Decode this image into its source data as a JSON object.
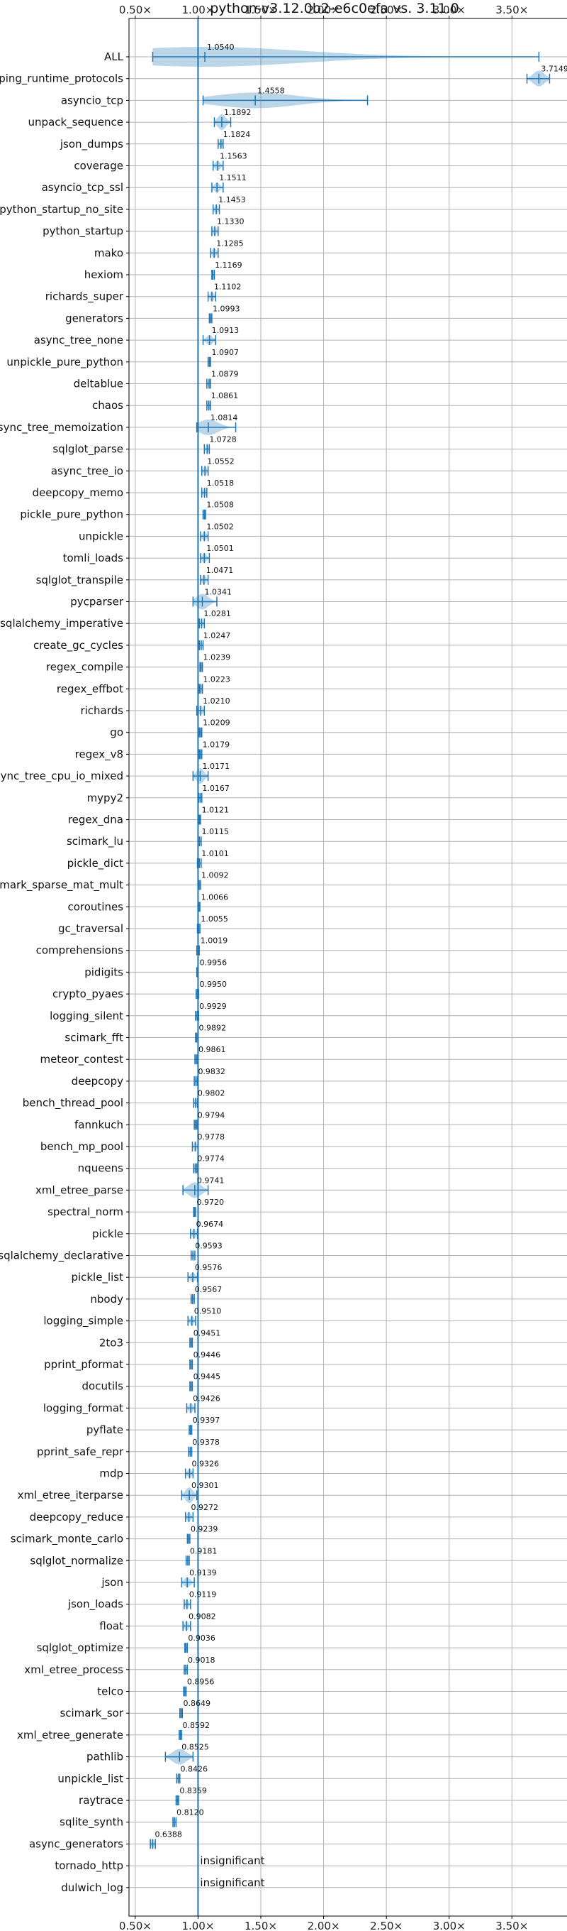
{
  "chart_data": {
    "type": "violin",
    "title": "python-v3.12.0b2-e6c0efa vs. 3.11.0",
    "xlabel": "",
    "ylabel": "",
    "xlim": [
      0.45,
      3.95
    ],
    "xticks": [
      0.5,
      1.0,
      1.5,
      2.0,
      2.5,
      3.0,
      3.5
    ],
    "xtick_labels": [
      "0.50×",
      "1.00×",
      "1.50×",
      "2.00×",
      "2.50×",
      "3.00×",
      "3.50×"
    ],
    "reference_line": 1.0,
    "grid": true,
    "colors": {
      "violin": "#1f77b4",
      "grid": "#b0b0b0"
    },
    "benchmarks": [
      {
        "name": "ALL",
        "label": "1.0540",
        "value": 1.054,
        "min": 0.6388,
        "max": 3.7149,
        "spread": 0.13
      },
      {
        "name": "typing_runtime_protocols",
        "label": "3.7149",
        "value": 3.7149,
        "min": 3.62,
        "max": 3.8,
        "spread": 0.04
      },
      {
        "name": "asyncio_tcp",
        "label": "1.4558",
        "value": 1.4558,
        "min": 1.04,
        "max": 2.35,
        "spread": 0.4
      },
      {
        "name": "unpack_sequence",
        "label": "1.1892",
        "value": 1.1892,
        "min": 1.13,
        "max": 1.26,
        "spread": 0.02
      },
      {
        "name": "json_dumps",
        "label": "1.1824",
        "value": 1.1824,
        "min": 1.16,
        "max": 1.2,
        "spread": 0.01
      },
      {
        "name": "coverage",
        "label": "1.1563",
        "value": 1.1563,
        "min": 1.12,
        "max": 1.2,
        "spread": 0.02
      },
      {
        "name": "asyncio_tcp_ssl",
        "label": "1.1511",
        "value": 1.1511,
        "min": 1.11,
        "max": 1.2,
        "spread": 0.02
      },
      {
        "name": "python_startup_no_site",
        "label": "1.1453",
        "value": 1.1453,
        "min": 1.12,
        "max": 1.17,
        "spread": 0.01
      },
      {
        "name": "python_startup",
        "label": "1.1330",
        "value": 1.133,
        "min": 1.11,
        "max": 1.16,
        "spread": 0.01
      },
      {
        "name": "mako",
        "label": "1.1285",
        "value": 1.1285,
        "min": 1.1,
        "max": 1.16,
        "spread": 0.01
      },
      {
        "name": "hexiom",
        "label": "1.1169",
        "value": 1.1169,
        "min": 1.11,
        "max": 1.13,
        "spread": 0.005
      },
      {
        "name": "richards_super",
        "label": "1.1102",
        "value": 1.1102,
        "min": 1.08,
        "max": 1.14,
        "spread": 0.01
      },
      {
        "name": "generators",
        "label": "1.0993",
        "value": 1.0993,
        "min": 1.09,
        "max": 1.11,
        "spread": 0.005
      },
      {
        "name": "async_tree_none",
        "label": "1.0913",
        "value": 1.0913,
        "min": 1.04,
        "max": 1.14,
        "spread": 0.02
      },
      {
        "name": "unpickle_pure_python",
        "label": "1.0907",
        "value": 1.0907,
        "min": 1.08,
        "max": 1.1,
        "spread": 0.005
      },
      {
        "name": "deltablue",
        "label": "1.0879",
        "value": 1.0879,
        "min": 1.07,
        "max": 1.1,
        "spread": 0.005
      },
      {
        "name": "chaos",
        "label": "1.0861",
        "value": 1.0861,
        "min": 1.07,
        "max": 1.1,
        "spread": 0.005
      },
      {
        "name": "async_tree_memoization",
        "label": "1.0814",
        "value": 1.0814,
        "min": 0.99,
        "max": 1.3,
        "spread": 0.05
      },
      {
        "name": "sqlglot_parse",
        "label": "1.0728",
        "value": 1.0728,
        "min": 1.05,
        "max": 1.09,
        "spread": 0.01
      },
      {
        "name": "async_tree_io",
        "label": "1.0552",
        "value": 1.0552,
        "min": 1.03,
        "max": 1.08,
        "spread": 0.01
      },
      {
        "name": "deepcopy_memo",
        "label": "1.0518",
        "value": 1.0518,
        "min": 1.03,
        "max": 1.07,
        "spread": 0.01
      },
      {
        "name": "pickle_pure_python",
        "label": "1.0508",
        "value": 1.0508,
        "min": 1.04,
        "max": 1.06,
        "spread": 0.005
      },
      {
        "name": "unpickle",
        "label": "1.0502",
        "value": 1.0502,
        "min": 1.02,
        "max": 1.08,
        "spread": 0.01
      },
      {
        "name": "tomli_loads",
        "label": "1.0501",
        "value": 1.0501,
        "min": 1.02,
        "max": 1.09,
        "spread": 0.01
      },
      {
        "name": "sqlglot_transpile",
        "label": "1.0471",
        "value": 1.0471,
        "min": 1.02,
        "max": 1.08,
        "spread": 0.01
      },
      {
        "name": "pycparser",
        "label": "1.0341",
        "value": 1.0341,
        "min": 0.96,
        "max": 1.15,
        "spread": 0.03
      },
      {
        "name": "sqlalchemy_imperative",
        "label": "1.0281",
        "value": 1.0281,
        "min": 1.01,
        "max": 1.05,
        "spread": 0.005
      },
      {
        "name": "create_gc_cycles",
        "label": "1.0247",
        "value": 1.0247,
        "min": 1.01,
        "max": 1.04,
        "spread": 0.005
      },
      {
        "name": "regex_compile",
        "label": "1.0239",
        "value": 1.0239,
        "min": 1.015,
        "max": 1.035,
        "spread": 0.004
      },
      {
        "name": "regex_effbot",
        "label": "1.0223",
        "value": 1.0223,
        "min": 1.01,
        "max": 1.035,
        "spread": 0.004
      },
      {
        "name": "richards",
        "label": "1.0210",
        "value": 1.021,
        "min": 0.99,
        "max": 1.05,
        "spread": 0.01
      },
      {
        "name": "go",
        "label": "1.0209",
        "value": 1.0209,
        "min": 1.01,
        "max": 1.03,
        "spread": 0.004
      },
      {
        "name": "regex_v8",
        "label": "1.0179",
        "value": 1.0179,
        "min": 1.01,
        "max": 1.03,
        "spread": 0.004
      },
      {
        "name": "async_tree_cpu_io_mixed",
        "label": "1.0171",
        "value": 1.0171,
        "min": 0.96,
        "max": 1.08,
        "spread": 0.03
      },
      {
        "name": "mypy2",
        "label": "1.0167",
        "value": 1.0167,
        "min": 1.005,
        "max": 1.03,
        "spread": 0.004
      },
      {
        "name": "regex_dna",
        "label": "1.0121",
        "value": 1.0121,
        "min": 1.005,
        "max": 1.02,
        "spread": 0.003
      },
      {
        "name": "scimark_lu",
        "label": "1.0115",
        "value": 1.0115,
        "min": 1.0,
        "max": 1.025,
        "spread": 0.004
      },
      {
        "name": "pickle_dict",
        "label": "1.0101",
        "value": 1.0101,
        "min": 0.995,
        "max": 1.025,
        "spread": 0.004
      },
      {
        "name": "scimark_sparse_mat_mult",
        "label": "1.0092",
        "value": 1.0092,
        "min": 1.0,
        "max": 1.02,
        "spread": 0.003
      },
      {
        "name": "coroutines",
        "label": "1.0066",
        "value": 1.0066,
        "min": 1.0,
        "max": 1.015,
        "spread": 0.003
      },
      {
        "name": "gc_traversal",
        "label": "1.0055",
        "value": 1.0055,
        "min": 0.995,
        "max": 1.015,
        "spread": 0.003
      },
      {
        "name": "comprehensions",
        "label": "1.0019",
        "value": 1.0019,
        "min": 0.99,
        "max": 1.01,
        "spread": 0.003
      },
      {
        "name": "pidigits",
        "label": "0.9956",
        "value": 0.9956,
        "min": 0.99,
        "max": 1.0,
        "spread": 0.003
      },
      {
        "name": "crypto_pyaes",
        "label": "0.9950",
        "value": 0.995,
        "min": 0.985,
        "max": 1.005,
        "spread": 0.003
      },
      {
        "name": "logging_silent",
        "label": "0.9929",
        "value": 0.9929,
        "min": 0.98,
        "max": 1.005,
        "spread": 0.004
      },
      {
        "name": "scimark_fft",
        "label": "0.9892",
        "value": 0.9892,
        "min": 0.98,
        "max": 1.0,
        "spread": 0.003
      },
      {
        "name": "meteor_contest",
        "label": "0.9861",
        "value": 0.9861,
        "min": 0.975,
        "max": 0.995,
        "spread": 0.003
      },
      {
        "name": "deepcopy",
        "label": "0.9832",
        "value": 0.9832,
        "min": 0.97,
        "max": 0.995,
        "spread": 0.004
      },
      {
        "name": "bench_thread_pool",
        "label": "0.9802",
        "value": 0.9802,
        "min": 0.965,
        "max": 0.995,
        "spread": 0.004
      },
      {
        "name": "fannkuch",
        "label": "0.9794",
        "value": 0.9794,
        "min": 0.97,
        "max": 0.99,
        "spread": 0.003
      },
      {
        "name": "bench_mp_pool",
        "label": "0.9778",
        "value": 0.9778,
        "min": 0.955,
        "max": 1.0,
        "spread": 0.005
      },
      {
        "name": "nqueens",
        "label": "0.9774",
        "value": 0.9774,
        "min": 0.965,
        "max": 0.99,
        "spread": 0.003
      },
      {
        "name": "xml_etree_parse",
        "label": "0.9741",
        "value": 0.9741,
        "min": 0.88,
        "max": 1.08,
        "spread": 0.035
      },
      {
        "name": "spectral_norm",
        "label": "0.9720",
        "value": 0.972,
        "min": 0.965,
        "max": 0.98,
        "spread": 0.003
      },
      {
        "name": "pickle",
        "label": "0.9674",
        "value": 0.9674,
        "min": 0.94,
        "max": 0.995,
        "spread": 0.006
      },
      {
        "name": "sqlalchemy_declarative",
        "label": "0.9593",
        "value": 0.9593,
        "min": 0.945,
        "max": 0.975,
        "spread": 0.004
      },
      {
        "name": "pickle_list",
        "label": "0.9576",
        "value": 0.9576,
        "min": 0.92,
        "max": 0.995,
        "spread": 0.008
      },
      {
        "name": "nbody",
        "label": "0.9567",
        "value": 0.9567,
        "min": 0.945,
        "max": 0.97,
        "spread": 0.003
      },
      {
        "name": "logging_simple",
        "label": "0.9510",
        "value": 0.951,
        "min": 0.92,
        "max": 0.98,
        "spread": 0.007
      },
      {
        "name": "2to3",
        "label": "0.9451",
        "value": 0.9451,
        "min": 0.935,
        "max": 0.955,
        "spread": 0.003
      },
      {
        "name": "pprint_pformat",
        "label": "0.9446",
        "value": 0.9446,
        "min": 0.935,
        "max": 0.955,
        "spread": 0.003
      },
      {
        "name": "docutils",
        "label": "0.9445",
        "value": 0.9445,
        "min": 0.935,
        "max": 0.955,
        "spread": 0.003
      },
      {
        "name": "logging_format",
        "label": "0.9426",
        "value": 0.9426,
        "min": 0.91,
        "max": 0.975,
        "spread": 0.007
      },
      {
        "name": "pyflate",
        "label": "0.9397",
        "value": 0.9397,
        "min": 0.93,
        "max": 0.95,
        "spread": 0.003
      },
      {
        "name": "pprint_safe_repr",
        "label": "0.9378",
        "value": 0.9378,
        "min": 0.925,
        "max": 0.95,
        "spread": 0.003
      },
      {
        "name": "mdp",
        "label": "0.9326",
        "value": 0.9326,
        "min": 0.9,
        "max": 0.96,
        "spread": 0.007
      },
      {
        "name": "xml_etree_iterparse",
        "label": "0.9301",
        "value": 0.9301,
        "min": 0.87,
        "max": 0.99,
        "spread": 0.015
      },
      {
        "name": "deepcopy_reduce",
        "label": "0.9272",
        "value": 0.9272,
        "min": 0.9,
        "max": 0.96,
        "spread": 0.007
      },
      {
        "name": "scimark_monte_carlo",
        "label": "0.9239",
        "value": 0.9239,
        "min": 0.915,
        "max": 0.935,
        "spread": 0.003
      },
      {
        "name": "sqlglot_normalize",
        "label": "0.9181",
        "value": 0.9181,
        "min": 0.905,
        "max": 0.93,
        "spread": 0.003
      },
      {
        "name": "json",
        "label": "0.9139",
        "value": 0.9139,
        "min": 0.87,
        "max": 0.97,
        "spread": 0.01
      },
      {
        "name": "json_loads",
        "label": "0.9119",
        "value": 0.9119,
        "min": 0.89,
        "max": 0.94,
        "spread": 0.006
      },
      {
        "name": "float",
        "label": "0.9082",
        "value": 0.9082,
        "min": 0.88,
        "max": 0.94,
        "spread": 0.006
      },
      {
        "name": "sqlglot_optimize",
        "label": "0.9036",
        "value": 0.9036,
        "min": 0.895,
        "max": 0.915,
        "spread": 0.003
      },
      {
        "name": "xml_etree_process",
        "label": "0.9018",
        "value": 0.9018,
        "min": 0.89,
        "max": 0.915,
        "spread": 0.003
      },
      {
        "name": "telco",
        "label": "0.8956",
        "value": 0.8956,
        "min": 0.885,
        "max": 0.905,
        "spread": 0.003
      },
      {
        "name": "scimark_sor",
        "label": "0.8649",
        "value": 0.8649,
        "min": 0.855,
        "max": 0.875,
        "spread": 0.003
      },
      {
        "name": "xml_etree_generate",
        "label": "0.8592",
        "value": 0.8592,
        "min": 0.85,
        "max": 0.87,
        "spread": 0.003
      },
      {
        "name": "pathlib",
        "label": "0.8525",
        "value": 0.8525,
        "min": 0.74,
        "max": 0.96,
        "spread": 0.05
      },
      {
        "name": "unpickle_list",
        "label": "0.8426",
        "value": 0.8426,
        "min": 0.83,
        "max": 0.855,
        "spread": 0.003
      },
      {
        "name": "raytrace",
        "label": "0.8359",
        "value": 0.8359,
        "min": 0.825,
        "max": 0.845,
        "spread": 0.003
      },
      {
        "name": "sqlite_synth",
        "label": "0.8120",
        "value": 0.812,
        "min": 0.8,
        "max": 0.825,
        "spread": 0.003
      },
      {
        "name": "async_generators",
        "label": "0.6388",
        "value": 0.6388,
        "min": 0.62,
        "max": 0.66,
        "spread": 0.005
      },
      {
        "name": "tornado_http",
        "label": "insignificant",
        "value": null,
        "min": null,
        "max": null,
        "spread": 0
      },
      {
        "name": "dulwich_log",
        "label": "insignificant",
        "value": null,
        "min": null,
        "max": null,
        "spread": 0
      }
    ]
  }
}
